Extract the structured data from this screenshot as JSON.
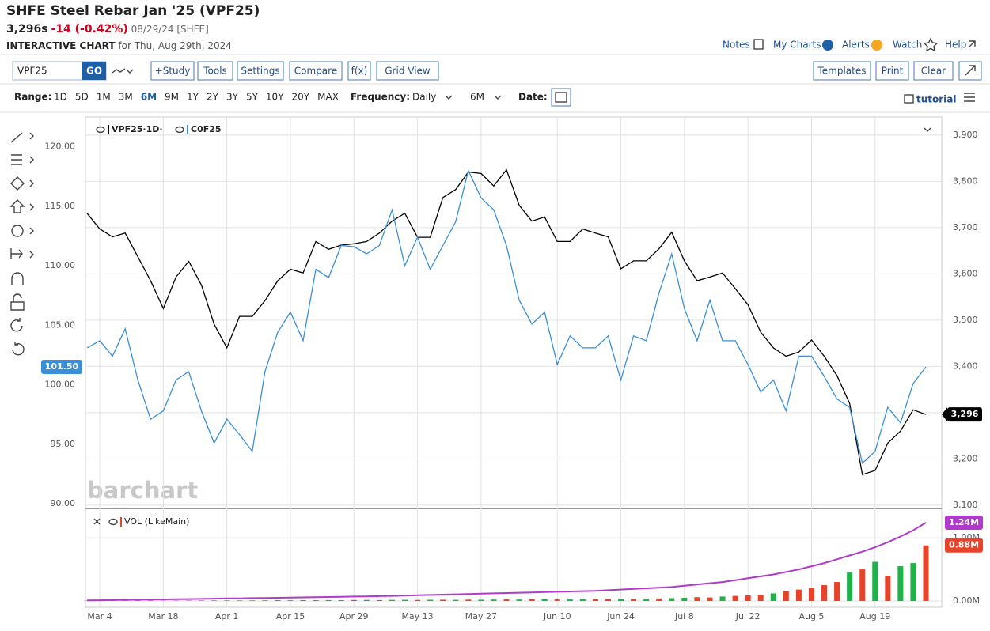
{
  "ui": {
    "title": "SHFE Steel Rebar Jan '25 (VPF25)",
    "price": "3,296s",
    "change": "-14 (-0.42%)",
    "quote_date": "08/29/24 [SHFE]",
    "chart_label": "INTERACTIVE CHART",
    "chart_date": "for Thu, Aug 29th, 2024",
    "links": [
      "Notes",
      "My Charts",
      "Alerts",
      "Watch",
      "Help"
    ],
    "symbol": "VPF25",
    "go": "GO",
    "tools_left": [
      "+Study",
      "Tools",
      "Settings",
      "Compare",
      "f(x)",
      "Grid View"
    ],
    "tools_right": [
      "Templates",
      "Print",
      "Clear"
    ],
    "range_label": "Range:",
    "ranges": [
      "1D",
      "5D",
      "1M",
      "3M",
      "6M",
      "9M",
      "1Y",
      "2Y",
      "3Y",
      "5Y",
      "10Y",
      "20Y",
      "MAX"
    ],
    "range_active": 4,
    "frequency_label": "Frequency:",
    "frequency": "Daily",
    "period": "6M",
    "date_label": "Date:",
    "tutorial": "tutorial",
    "watermark": "barchart"
  },
  "chart_data": [
    {
      "type": "line",
      "categories": [
        null,
        "Mar 4",
        null,
        null,
        null,
        null,
        "Mar 18",
        null,
        null,
        null,
        null,
        "Apr 1",
        null,
        null,
        null,
        null,
        "Apr 15",
        null,
        null,
        null,
        null,
        "Apr 29",
        null,
        null,
        null,
        null,
        "May 13",
        null,
        null,
        null,
        null,
        "May 27",
        null,
        null,
        null,
        null,
        null,
        "Jun 10",
        null,
        null,
        null,
        null,
        "Jun 24",
        null,
        null,
        null,
        null,
        "Jul 8",
        null,
        null,
        null,
        null,
        "Jul 22",
        null,
        null,
        null,
        null,
        "Aug 5",
        null,
        null,
        null,
        null,
        "Aug 19",
        null,
        null,
        null,
        null
      ],
      "series": [
        {
          "name": "VPF25·1D·",
          "color": "#000000",
          "axis": "y2",
          "values": [
            3731,
            3697,
            3680,
            3688,
            3637,
            3585,
            3525,
            3593,
            3627,
            3576,
            3491,
            3440,
            3508,
            3508,
            3542,
            3585,
            3610,
            3602,
            3670,
            3653,
            3662,
            3665,
            3670,
            3688,
            3714,
            3731,
            3679,
            3679,
            3765,
            3782,
            3820,
            3817,
            3790,
            3825,
            3748,
            3714,
            3723,
            3670,
            3670,
            3697,
            3688,
            3680,
            3611,
            3628,
            3628,
            3654,
            3690,
            3628,
            3585,
            3593,
            3602,
            3568,
            3533,
            3474,
            3440,
            3422,
            3431,
            3457,
            3422,
            3380,
            3320,
            3166,
            3175,
            3234,
            3260,
            3306,
            3296
          ],
          "value_labels": [
            null,
            null,
            null,
            null,
            null,
            null,
            null,
            null,
            null,
            null,
            null,
            null,
            null,
            null,
            null,
            null,
            null,
            null,
            null,
            null,
            null,
            null,
            null,
            null,
            null,
            null,
            null,
            null,
            null,
            null,
            null,
            null,
            null,
            null,
            null,
            null,
            null,
            null,
            null,
            null,
            null,
            null,
            null,
            null,
            null,
            null,
            null,
            null,
            null,
            null,
            null,
            null,
            null,
            null,
            null,
            null,
            null,
            null,
            null,
            null,
            null,
            null,
            null,
            null,
            null,
            null,
            "3,296"
          ]
        },
        {
          "name": "C0F25",
          "color": "#3a8fd8",
          "values": [
            103.1,
            103.7,
            102.4,
            104.7,
            100.4,
            97.1,
            97.8,
            100.4,
            101.1,
            97.8,
            95.1,
            97.1,
            95.8,
            94.4,
            101.1,
            104.4,
            106.1,
            103.7,
            109.7,
            109.0,
            111.7,
            111.6,
            111.0,
            111.7,
            114.7,
            110.0,
            112.4,
            109.7,
            111.7,
            113.7,
            118.0,
            115.7,
            114.7,
            111.7,
            107.1,
            105.1,
            106.1,
            101.7,
            104.1,
            103.1,
            103.1,
            104.1,
            100.4,
            104.1,
            103.7,
            107.7,
            111.0,
            106.4,
            103.7,
            107.1,
            103.7,
            103.7,
            101.7,
            99.4,
            100.4,
            97.8,
            102.4,
            102.4,
            100.7,
            98.8,
            98.1,
            93.4,
            94.4,
            98.1,
            96.8,
            100.1,
            101.5
          ],
          "value_labels": [
            null,
            null,
            null,
            null,
            null,
            null,
            null,
            null,
            null,
            null,
            null,
            null,
            null,
            null,
            null,
            null,
            null,
            null,
            null,
            null,
            null,
            null,
            null,
            null,
            null,
            null,
            null,
            null,
            null,
            null,
            null,
            null,
            null,
            null,
            null,
            null,
            null,
            null,
            null,
            null,
            null,
            null,
            null,
            null,
            null,
            null,
            null,
            null,
            null,
            null,
            null,
            null,
            null,
            null,
            null,
            null,
            null,
            null,
            null,
            null,
            null,
            null,
            null,
            null,
            null,
            null,
            "101.50"
          ]
        }
      ],
      "ylim": [
        89.8,
        122.5
      ],
      "yticks": [
        {
          "value": 90,
          "label": "90.00"
        },
        {
          "value": 95,
          "label": "95.00"
        },
        {
          "value": 100,
          "label": "100.00"
        },
        {
          "value": 105,
          "label": "105.00"
        },
        {
          "value": 110,
          "label": "110.00"
        },
        {
          "value": 115,
          "label": "115.00"
        },
        {
          "value": 120,
          "label": "120.00"
        }
      ],
      "y2lim": [
        3098,
        3939
      ],
      "y2ticks": [
        {
          "value": 3100,
          "label": "3,100"
        },
        {
          "value": 3200,
          "label": "3,200"
        },
        {
          "value": 3300,
          "label": "3,300"
        },
        {
          "value": 3400,
          "label": "3,400"
        },
        {
          "value": 3500,
          "label": "3,500"
        },
        {
          "value": 3600,
          "label": "3,600"
        },
        {
          "value": 3700,
          "label": "3,700"
        },
        {
          "value": 3800,
          "label": "3,800"
        },
        {
          "value": 3900,
          "label": "3,900"
        }
      ],
      "grid": true
    },
    {
      "type": "bar",
      "name": "VOL (LikeMain)",
      "values": [
        0.005,
        0.005,
        0.006,
        0.005,
        0.006,
        0.007,
        0.006,
        0.006,
        0.007,
        0.008,
        0.008,
        0.009,
        0.008,
        0.009,
        0.01,
        0.012,
        0.011,
        0.013,
        0.012,
        0.014,
        0.013,
        0.015,
        0.016,
        0.014,
        0.017,
        0.018,
        0.016,
        0.019,
        0.02,
        0.018,
        0.021,
        0.02,
        0.022,
        0.024,
        0.023,
        0.025,
        0.026,
        0.024,
        0.028,
        0.03,
        0.029,
        0.031,
        0.034,
        0.032,
        0.036,
        0.04,
        0.045,
        0.05,
        0.06,
        0.055,
        0.07,
        0.08,
        0.09,
        0.1,
        0.12,
        0.15,
        0.18,
        0.2,
        0.25,
        0.3,
        0.45,
        0.5,
        0.62,
        0.4,
        0.55,
        0.6,
        0.88
      ],
      "colors": [
        "#21b14b",
        "#e8432a",
        "#21b14b",
        "#21b14b",
        "#e8432a",
        "#e8432a",
        "#21b14b",
        "#e8432a",
        "#21b14b",
        "#21b14b",
        "#e8432a",
        "#21b14b",
        "#e8432a",
        "#21b14b",
        "#21b14b",
        "#e8432a",
        "#21b14b",
        "#e8432a",
        "#e8432a",
        "#21b14b",
        "#21b14b",
        "#e8432a",
        "#21b14b",
        "#e8432a",
        "#21b14b",
        "#21b14b",
        "#e8432a",
        "#21b14b",
        "#e8432a",
        "#21b14b",
        "#e8432a",
        "#21b14b",
        "#21b14b",
        "#e8432a",
        "#21b14b",
        "#e8432a",
        "#21b14b",
        "#e8432a",
        "#21b14b",
        "#21b14b",
        "#e8432a",
        "#e8432a",
        "#21b14b",
        "#e8432a",
        "#21b14b",
        "#e8432a",
        "#21b14b",
        "#21b14b",
        "#e8432a",
        "#e8432a",
        "#21b14b",
        "#e8432a",
        "#e8432a",
        "#e8432a",
        "#21b14b",
        "#e8432a",
        "#e8432a",
        "#e8432a",
        "#e8432a",
        "#e8432a",
        "#21b14b",
        "#e8432a",
        "#21b14b",
        "#e8432a",
        "#21b14b",
        "#21b14b",
        "#e8432a"
      ],
      "value_labels": [
        null,
        null,
        null,
        null,
        null,
        null,
        null,
        null,
        null,
        null,
        null,
        null,
        null,
        null,
        null,
        null,
        null,
        null,
        null,
        null,
        null,
        null,
        null,
        null,
        null,
        null,
        null,
        null,
        null,
        null,
        null,
        null,
        null,
        null,
        null,
        null,
        null,
        null,
        null,
        null,
        null,
        null,
        null,
        null,
        null,
        null,
        null,
        null,
        null,
        null,
        null,
        null,
        null,
        null,
        null,
        null,
        null,
        null,
        null,
        null,
        null,
        null,
        null,
        null,
        null,
        null,
        "0.88M"
      ],
      "line": {
        "color": "#b03ac9",
        "values": [
          0.01,
          0.012,
          0.015,
          0.018,
          0.02,
          0.023,
          0.025,
          0.028,
          0.03,
          0.033,
          0.036,
          0.04,
          0.042,
          0.045,
          0.048,
          0.05,
          0.053,
          0.056,
          0.06,
          0.063,
          0.066,
          0.07,
          0.073,
          0.077,
          0.08,
          0.085,
          0.09,
          0.095,
          0.1,
          0.105,
          0.11,
          0.115,
          0.12,
          0.125,
          0.13,
          0.135,
          0.14,
          0.145,
          0.15,
          0.155,
          0.16,
          0.17,
          0.18,
          0.19,
          0.2,
          0.21,
          0.22,
          0.24,
          0.26,
          0.28,
          0.3,
          0.33,
          0.36,
          0.39,
          0.42,
          0.46,
          0.5,
          0.55,
          0.6,
          0.66,
          0.72,
          0.78,
          0.85,
          0.93,
          1.02,
          1.12,
          1.24
        ],
        "value_labels": [
          null,
          null,
          null,
          null,
          null,
          null,
          null,
          null,
          null,
          null,
          null,
          null,
          null,
          null,
          null,
          null,
          null,
          null,
          null,
          null,
          null,
          null,
          null,
          null,
          null,
          null,
          null,
          null,
          null,
          null,
          null,
          null,
          null,
          null,
          null,
          null,
          null,
          null,
          null,
          null,
          null,
          null,
          null,
          null,
          null,
          null,
          null,
          null,
          null,
          null,
          null,
          null,
          null,
          null,
          null,
          null,
          null,
          null,
          null,
          null,
          null,
          null,
          null,
          null,
          null,
          null,
          "1.24M"
        ]
      },
      "ylim": [
        -0.1,
        1.44
      ],
      "yticks": [
        {
          "value": 0,
          "label": "0.00M"
        },
        {
          "value": 1,
          "label": "1.00M"
        }
      ],
      "grid": true
    }
  ]
}
